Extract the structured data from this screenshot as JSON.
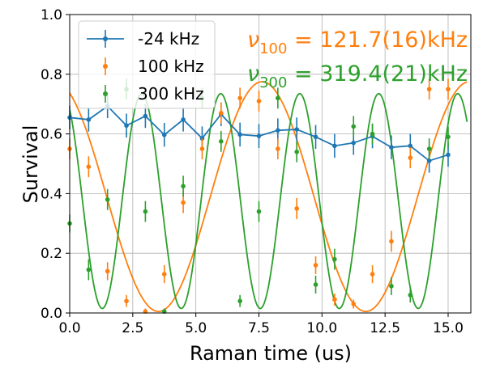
{
  "chart_data": {
    "type": "scatter",
    "xlabel": "Raman time (us)",
    "ylabel": "Survival",
    "xlim": [
      0,
      15.9
    ],
    "ylim": [
      0,
      1
    ],
    "xticks": [
      "0.0",
      "2.5",
      "5.0",
      "7.5",
      "10.0",
      "12.5",
      "15.0"
    ],
    "yticks": [
      "0.0",
      "0.2",
      "0.4",
      "0.6",
      "0.8",
      "1.0"
    ],
    "grid": true,
    "legend_position": "top-left",
    "series": [
      {
        "name": "-24 kHz",
        "color": "#1f77b4",
        "marker_style": "line-with-markers",
        "x": [
          0,
          0.75,
          1.5,
          2.25,
          3.0,
          3.75,
          4.5,
          5.25,
          6.0,
          6.75,
          7.5,
          8.25,
          9.0,
          9.75,
          10.5,
          11.25,
          12.0,
          12.75,
          13.5,
          14.25,
          15.0
        ],
        "y": [
          0.655,
          0.648,
          0.693,
          0.628,
          0.66,
          0.597,
          0.648,
          0.585,
          0.666,
          0.598,
          0.593,
          0.612,
          0.615,
          0.59,
          0.56,
          0.57,
          0.592,
          0.555,
          0.56,
          0.51,
          0.53
        ],
        "yerr": [
          0.04,
          0.04,
          0.04,
          0.04,
          0.04,
          0.04,
          0.04,
          0.04,
          0.04,
          0.04,
          0.04,
          0.04,
          0.04,
          0.04,
          0.04,
          0.04,
          0.04,
          0.04,
          0.04,
          0.04,
          0.04
        ]
      },
      {
        "name": "100 kHz",
        "color": "#ff7f0e",
        "marker_style": "markers",
        "x": [
          0,
          0.75,
          1.5,
          2.25,
          3.0,
          3.75,
          4.5,
          5.25,
          6.0,
          6.75,
          7.5,
          8.25,
          9.0,
          9.75,
          10.5,
          11.25,
          12.0,
          12.75,
          13.5,
          14.25,
          15.0
        ],
        "y": [
          0.55,
          0.49,
          0.14,
          0.04,
          0.005,
          0.13,
          0.37,
          0.55,
          0.67,
          0.72,
          0.71,
          0.55,
          0.35,
          0.16,
          0.045,
          0.03,
          0.13,
          0.24,
          0.52,
          0.75,
          0.75
        ],
        "yerr": [
          0.035,
          0.035,
          0.03,
          0.02,
          0.01,
          0.03,
          0.035,
          0.035,
          0.035,
          0.035,
          0.035,
          0.035,
          0.035,
          0.03,
          0.02,
          0.015,
          0.03,
          0.035,
          0.035,
          0.035,
          0.035
        ],
        "fit": {
          "amplitude": 0.385,
          "offset": 0.39,
          "frequency_mhz": 0.1217,
          "phase": 0.45
        }
      },
      {
        "name": "300 kHz",
        "color": "#2ca02c",
        "marker_style": "markers",
        "x": [
          0,
          0.75,
          1.5,
          2.25,
          3.0,
          3.75,
          4.5,
          5.25,
          6.0,
          6.75,
          7.5,
          8.25,
          9.0,
          9.75,
          10.5,
          11.25,
          12.0,
          12.75,
          13.5,
          14.25,
          15.0
        ],
        "y": [
          0.3,
          0.145,
          0.38,
          0.75,
          0.34,
          0.005,
          0.425,
          0.72,
          0.575,
          0.04,
          0.34,
          0.72,
          0.54,
          0.095,
          0.18,
          0.625,
          0.6,
          0.09,
          0.06,
          0.55,
          0.59
        ],
        "yerr": [
          0.03,
          0.035,
          0.035,
          0.035,
          0.035,
          0.01,
          0.035,
          0.035,
          0.035,
          0.02,
          0.035,
          0.035,
          0.035,
          0.03,
          0.035,
          0.035,
          0.035,
          0.03,
          0.025,
          0.035,
          0.035
        ],
        "fit": {
          "amplitude": 0.36,
          "offset": 0.375,
          "frequency_mhz": 0.3194,
          "phase": 0.55
        }
      }
    ],
    "annotations": [
      {
        "symbol": "ν",
        "subscript": "100",
        "value": " = 121.7(16)kHz",
        "color": "#ff7f0e"
      },
      {
        "symbol": "ν",
        "subscript": "300",
        "value": " = 319.4(21)kHz",
        "color": "#2ca02c"
      }
    ]
  }
}
